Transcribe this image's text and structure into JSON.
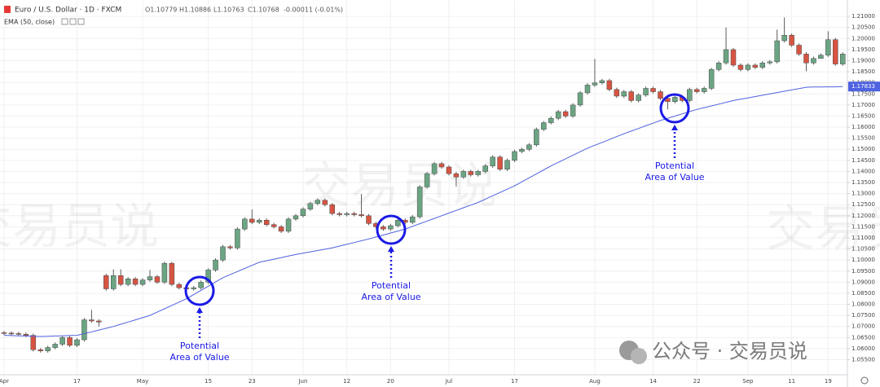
{
  "chart_data": {
    "type": "candlestick",
    "title": "Euro / U.S. Dollar · 1D · FXCM",
    "ohlc_legend": [
      "O1.10779",
      "H1.10886",
      "L1.10763",
      "C1.10768"
    ],
    "change": "-0.00011 (-0.01%)",
    "categories": [
      "Apr",
      null,
      null,
      null,
      null,
      null,
      null,
      null,
      null,
      null,
      "17",
      null,
      null,
      null,
      null,
      null,
      null,
      null,
      null,
      "May",
      null,
      null,
      null,
      null,
      null,
      null,
      null,
      null,
      "15",
      null,
      null,
      null,
      null,
      null,
      "23",
      null,
      null,
      null,
      null,
      null,
      null,
      "Jun",
      null,
      null,
      null,
      null,
      null,
      "12",
      null,
      null,
      null,
      null,
      null,
      "20",
      null,
      null,
      null,
      null,
      null,
      null,
      null,
      "Jul",
      null,
      null,
      null,
      null,
      null,
      null,
      null,
      null,
      "17",
      null,
      null,
      null,
      null,
      null,
      null,
      null,
      null,
      null,
      null,
      "Aug",
      null,
      null,
      null,
      null,
      null,
      null,
      null,
      "14",
      null,
      null,
      null,
      null,
      null,
      "22",
      null,
      null,
      null,
      null,
      null,
      null,
      "Sep",
      null,
      null,
      null,
      null,
      null,
      "11",
      null,
      null,
      null,
      null,
      "19",
      null,
      null
    ],
    "open": [
      1.0672,
      1.067,
      1.0668,
      1.0665,
      1.066,
      1.0595,
      1.059,
      1.0605,
      1.062,
      1.065,
      1.0615,
      1.064,
      1.073,
      1.0725,
      1.093,
      1.087,
      1.093,
      1.089,
      1.0915,
      1.089,
      1.091,
      1.0925,
      1.09,
      1.0985,
      1.089,
      1.0875,
      1.087,
      1.0875,
      1.09,
      1.0955,
      1.1,
      1.106,
      1.1055,
      1.114,
      1.1185,
      1.117,
      1.118,
      1.116,
      1.115,
      1.113,
      1.1185,
      1.12,
      1.123,
      1.1255,
      1.127,
      1.125,
      1.121,
      1.1205,
      1.121,
      1.1205,
      1.12,
      1.1165,
      1.115,
      1.114,
      1.1155,
      1.118,
      1.117,
      1.1195,
      1.133,
      1.139,
      1.1435,
      1.142,
      1.139,
      1.1375,
      1.14,
      1.1385,
      1.14,
      1.1425,
      1.1465,
      1.141,
      1.145,
      1.149,
      1.15,
      1.152,
      1.159,
      1.162,
      1.164,
      1.167,
      1.165,
      1.17,
      1.1755,
      1.179,
      1.18,
      1.181,
      1.177,
      1.174,
      1.176,
      1.172,
      1.1745,
      1.1775,
      1.176,
      1.173,
      1.1715,
      1.1735,
      1.172,
      1.177,
      1.176,
      1.1775,
      1.186,
      1.189,
      1.195,
      1.188,
      1.186,
      1.188,
      1.187,
      1.189,
      1.1895,
      1.199,
      1.2015,
      1.197,
      1.193,
      1.189,
      1.191,
      1.1925,
      1.1995,
      1.1885
    ],
    "high": [
      1.068,
      1.0678,
      1.0676,
      1.0673,
      1.0668,
      1.0603,
      1.0613,
      1.0628,
      1.0658,
      1.0658,
      1.0648,
      1.0738,
      1.0775,
      1.0733,
      1.0938,
      1.0958,
      1.0958,
      1.0923,
      1.0923,
      1.0918,
      1.0955,
      1.0933,
      1.0993,
      1.0993,
      1.0898,
      1.0883,
      1.0883,
      1.0908,
      1.0963,
      1.1008,
      1.1068,
      1.1068,
      1.1148,
      1.1193,
      1.1228,
      1.1188,
      1.1188,
      1.1168,
      1.1158,
      1.1193,
      1.1208,
      1.1238,
      1.1263,
      1.1278,
      1.1278,
      1.1258,
      1.1218,
      1.1218,
      1.1218,
      1.1298,
      1.1208,
      1.1173,
      1.1158,
      1.1163,
      1.1188,
      1.1188,
      1.1203,
      1.1338,
      1.1398,
      1.1443,
      1.1443,
      1.1428,
      1.1398,
      1.1408,
      1.1408,
      1.1408,
      1.1433,
      1.1473,
      1.1473,
      1.1458,
      1.1498,
      1.1508,
      1.1528,
      1.1598,
      1.1628,
      1.1648,
      1.1678,
      1.1678,
      1.1708,
      1.1763,
      1.1798,
      1.1908,
      1.1818,
      1.1818,
      1.1778,
      1.1768,
      1.1768,
      1.1753,
      1.1783,
      1.1783,
      1.1768,
      1.1738,
      1.1743,
      1.1743,
      1.1778,
      1.1778,
      1.1783,
      1.1868,
      1.1898,
      1.205,
      1.1958,
      1.1888,
      1.1888,
      1.1888,
      1.1898,
      1.1903,
      1.204,
      1.2095,
      1.2023,
      1.1978,
      1.1938,
      1.1918,
      1.1933,
      1.2033,
      1.2003,
      1.1938
    ],
    "low": [
      1.0662,
      1.066,
      1.0657,
      1.0652,
      1.0587,
      1.0582,
      1.0582,
      1.0597,
      1.0612,
      1.0607,
      1.0607,
      1.0632,
      1.0717,
      1.07,
      1.0862,
      1.0862,
      1.0882,
      1.0882,
      1.0882,
      1.0882,
      1.0902,
      1.0892,
      1.0892,
      1.0882,
      1.0867,
      1.0862,
      1.0862,
      1.0867,
      1.0892,
      1.0947,
      1.0992,
      1.1047,
      1.1047,
      1.1132,
      1.1162,
      1.1162,
      1.1152,
      1.1142,
      1.1122,
      1.1122,
      1.1177,
      1.1192,
      1.1222,
      1.1247,
      1.1242,
      1.1202,
      1.1197,
      1.1197,
      1.1197,
      1.1192,
      1.1157,
      1.1142,
      1.1132,
      1.1132,
      1.1147,
      1.1162,
      1.1162,
      1.1187,
      1.1322,
      1.1382,
      1.1412,
      1.1382,
      1.1332,
      1.1367,
      1.1377,
      1.1377,
      1.1392,
      1.1417,
      1.1402,
      1.1402,
      1.1442,
      1.1482,
      1.1492,
      1.1512,
      1.1582,
      1.1612,
      1.1632,
      1.1642,
      1.1642,
      1.1692,
      1.1747,
      1.1782,
      1.1792,
      1.1762,
      1.1732,
      1.1732,
      1.1712,
      1.1712,
      1.1737,
      1.1752,
      1.1722,
      1.168,
      1.1707,
      1.1712,
      1.1712,
      1.1752,
      1.1752,
      1.1767,
      1.1852,
      1.1882,
      1.1872,
      1.1852,
      1.1852,
      1.1862,
      1.1862,
      1.1882,
      1.1887,
      1.1982,
      1.1962,
      1.1922,
      1.1852,
      1.1882,
      1.1917,
      1.1917,
      1.1877,
      1.1877
    ],
    "close": [
      1.067,
      1.0668,
      1.0665,
      1.066,
      1.0595,
      1.059,
      1.0605,
      1.062,
      1.065,
      1.0615,
      1.064,
      1.073,
      1.0725,
      1.072,
      1.087,
      1.093,
      1.089,
      1.0915,
      1.089,
      1.091,
      1.0925,
      1.09,
      1.0985,
      1.089,
      1.0875,
      1.087,
      1.0875,
      1.09,
      1.0955,
      1.1,
      1.106,
      1.1055,
      1.114,
      1.1185,
      1.117,
      1.118,
      1.116,
      1.115,
      1.113,
      1.1185,
      1.12,
      1.123,
      1.1255,
      1.127,
      1.125,
      1.121,
      1.1205,
      1.121,
      1.1205,
      1.12,
      1.1165,
      1.115,
      1.114,
      1.1155,
      1.118,
      1.117,
      1.1195,
      1.133,
      1.139,
      1.1435,
      1.142,
      1.139,
      1.1375,
      1.14,
      1.1385,
      1.14,
      1.1425,
      1.1465,
      1.141,
      1.145,
      1.149,
      1.15,
      1.152,
      1.159,
      1.162,
      1.164,
      1.167,
      1.165,
      1.17,
      1.1755,
      1.179,
      1.18,
      1.181,
      1.177,
      1.174,
      1.176,
      1.172,
      1.1745,
      1.1775,
      1.176,
      1.173,
      1.1715,
      1.1735,
      1.172,
      1.177,
      1.176,
      1.1775,
      1.186,
      1.189,
      1.195,
      1.188,
      1.186,
      1.188,
      1.187,
      1.189,
      1.1895,
      1.199,
      1.2015,
      1.197,
      1.193,
      1.189,
      1.191,
      1.1925,
      1.1995,
      1.1885,
      1.193
    ],
    "up_color": "#6ba583",
    "down_color": "#d75442",
    "ema": {
      "name": "EMA (50, close)",
      "color": "#4f62e0",
      "values": [
        1.066,
        1.0659,
        1.0658,
        1.0657,
        1.0656,
        1.0655,
        1.0656,
        1.0657,
        1.0658,
        1.0659,
        1.066,
        1.0668,
        1.0676,
        1.0684,
        1.0692,
        1.07,
        1.071,
        1.072,
        1.073,
        1.074,
        1.075,
        1.0765,
        1.078,
        1.0795,
        1.081,
        1.0825,
        1.0844,
        1.0863,
        1.0882,
        1.0901,
        1.092,
        1.0934,
        1.0948,
        1.0962,
        1.0976,
        1.099,
        1.0997,
        1.1004,
        1.1011,
        1.1018,
        1.1025,
        1.1031,
        1.1037,
        1.1043,
        1.1049,
        1.1055,
        1.1063,
        1.1071,
        1.1079,
        1.1087,
        1.1095,
        1.1104,
        1.1113,
        1.1122,
        1.1131,
        1.114,
        1.1152,
        1.1164,
        1.1176,
        1.1188,
        1.12,
        1.1212,
        1.1224,
        1.1236,
        1.1248,
        1.126,
        1.1275,
        1.129,
        1.1305,
        1.132,
        1.1335,
        1.1353,
        1.1371,
        1.1389,
        1.1407,
        1.1425,
        1.1441,
        1.1457,
        1.1473,
        1.1489,
        1.1505,
        1.1518,
        1.1531,
        1.1544,
        1.1557,
        1.157,
        1.1582,
        1.1594,
        1.1606,
        1.1618,
        1.163,
        1.164,
        1.165,
        1.166,
        1.167,
        1.168,
        1.1688,
        1.1696,
        1.1704,
        1.1712,
        1.172,
        1.1726,
        1.1732,
        1.1738,
        1.1744,
        1.175,
        1.1756,
        1.1762,
        1.1768,
        1.1774,
        1.178,
        1.1781,
        1.1781,
        1.1782,
        1.1782,
        1.17833
      ]
    },
    "price_marker": {
      "value": 1.17833,
      "label": "1.17833"
    },
    "ylim": [
      1.0482,
      1.2174
    ],
    "yticks": [
      {
        "value": 1.21,
        "label": "1.21000"
      },
      {
        "value": 1.205,
        "label": "1.20500"
      },
      {
        "value": 1.2,
        "label": "1.20000"
      },
      {
        "value": 1.195,
        "label": "1.19500"
      },
      {
        "value": 1.19,
        "label": "1.19000"
      },
      {
        "value": 1.185,
        "label": "1.18500"
      },
      {
        "value": 1.18,
        "label": "1.18000"
      },
      {
        "value": 1.175,
        "label": "1.17500"
      },
      {
        "value": 1.17,
        "label": "1.17000"
      },
      {
        "value": 1.165,
        "label": "1.16500"
      },
      {
        "value": 1.16,
        "label": "1.16000"
      },
      {
        "value": 1.155,
        "label": "1.15500"
      },
      {
        "value": 1.15,
        "label": "1.15000"
      },
      {
        "value": 1.145,
        "label": "1.14500"
      },
      {
        "value": 1.14,
        "label": "1.14000"
      },
      {
        "value": 1.135,
        "label": "1.13500"
      },
      {
        "value": 1.13,
        "label": "1.13000"
      },
      {
        "value": 1.125,
        "label": "1.12500"
      },
      {
        "value": 1.12,
        "label": "1.12000"
      },
      {
        "value": 1.115,
        "label": "1.11500"
      },
      {
        "value": 1.11,
        "label": "1.11000"
      },
      {
        "value": 1.105,
        "label": "1.10500"
      },
      {
        "value": 1.1,
        "label": "1.10000"
      },
      {
        "value": 1.095,
        "label": "1.09500"
      },
      {
        "value": 1.09,
        "label": "1.09000"
      },
      {
        "value": 1.085,
        "label": "1.08500"
      },
      {
        "value": 1.08,
        "label": "1.08000"
      },
      {
        "value": 1.075,
        "label": "1.07500"
      },
      {
        "value": 1.07,
        "label": "1.07000"
      },
      {
        "value": 1.065,
        "label": "1.06500"
      },
      {
        "value": 1.06,
        "label": "1.06000"
      },
      {
        "value": 1.055,
        "label": "1.05500"
      }
    ],
    "grid": true,
    "annotations": [
      [
        "Potential",
        "Area of Value"
      ],
      [
        "Potential",
        "Area of Value"
      ],
      [
        "Potential",
        "Area of Value"
      ]
    ],
    "watermark": "交易员说",
    "footer": "公众号 · 交易员说"
  }
}
